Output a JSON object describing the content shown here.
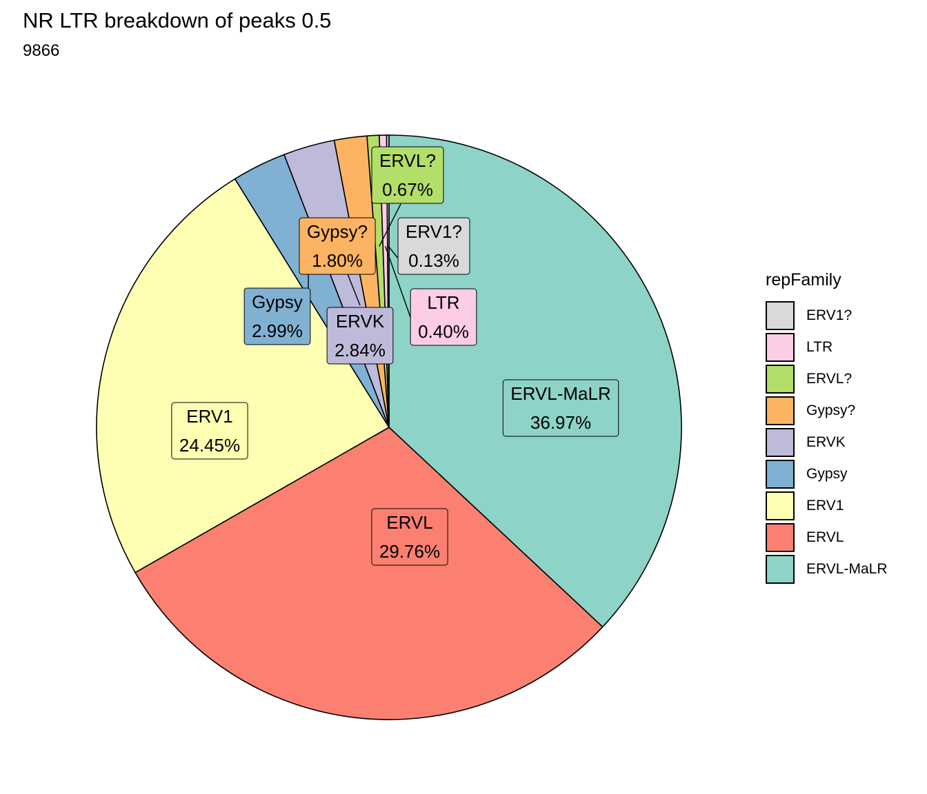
{
  "chart_data": {
    "type": "pie",
    "title": "NR LTR breakdown of peaks 0.5",
    "subtitle": "9866",
    "legend_title": "repFamily",
    "legend_position": "right",
    "slices": [
      {
        "category": "ERVL-MaLR",
        "value": 36.97,
        "label": "36.97%",
        "color": "#8DD3C7"
      },
      {
        "category": "ERVL",
        "value": 29.76,
        "label": "29.76%",
        "color": "#FB8072"
      },
      {
        "category": "ERV1",
        "value": 24.45,
        "label": "24.45%",
        "color": "#FFFFB3"
      },
      {
        "category": "Gypsy",
        "value": 2.99,
        "label": "2.99%",
        "color": "#80B1D3"
      },
      {
        "category": "ERVK",
        "value": 2.84,
        "label": "2.84%",
        "color": "#BEBADA"
      },
      {
        "category": "Gypsy?",
        "value": 1.8,
        "label": "1.80%",
        "color": "#FDB462"
      },
      {
        "category": "ERVL?",
        "value": 0.67,
        "label": "0.67%",
        "color": "#B3DE69"
      },
      {
        "category": "LTR",
        "value": 0.4,
        "label": "0.40%",
        "color": "#FCCDE5"
      },
      {
        "category": "ERV1?",
        "value": 0.13,
        "label": "0.13%",
        "color": "#D9D9D9"
      }
    ],
    "legend_order": [
      "ERV1?",
      "LTR",
      "ERVL?",
      "Gypsy?",
      "ERVK",
      "Gypsy",
      "ERV1",
      "ERVL",
      "ERVL-MaLR"
    ]
  }
}
